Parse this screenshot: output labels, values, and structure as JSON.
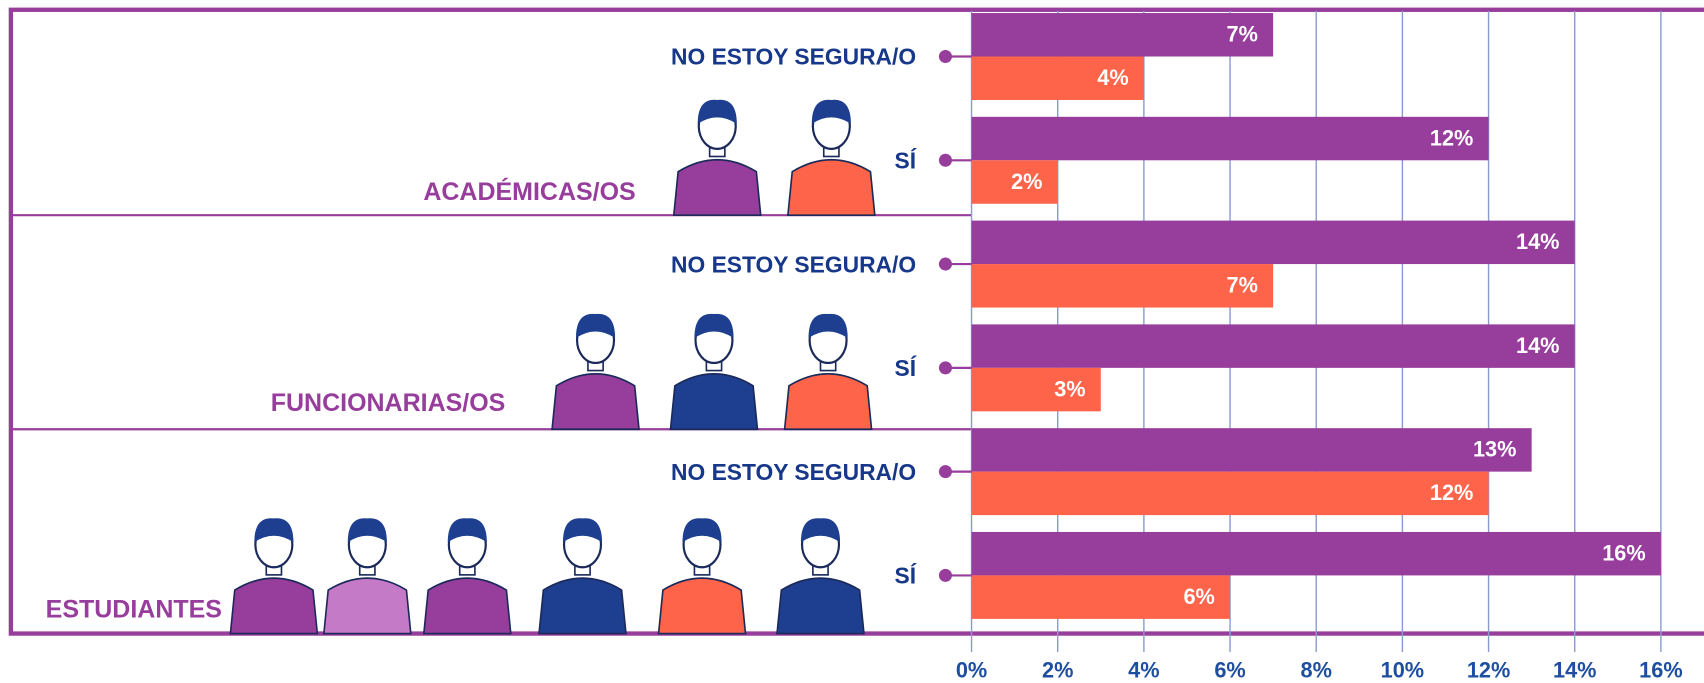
{
  "chart_data": {
    "type": "bar",
    "orientation": "horizontal",
    "groups": [
      "ACADÉMICAS/OS",
      "FUNCIONARIAS/OS",
      "ESTUDIANTES"
    ],
    "categories": [
      "NO ESTOY SEGURA/O",
      "SÍ",
      "NO ESTOY SEGURA/O",
      "SÍ",
      "NO ESTOY SEGURA/O",
      "SÍ"
    ],
    "series": [
      {
        "color": "#973d9c",
        "values": [
          7,
          12,
          14,
          14,
          13,
          16
        ],
        "value_labels": [
          "7%",
          "12%",
          "14%",
          "14%",
          "13%",
          "16%"
        ]
      },
      {
        "color": "#fe6449",
        "values": [
          4,
          2,
          7,
          3,
          12,
          6
        ],
        "value_labels": [
          "4%",
          "2%",
          "7%",
          "3%",
          "12%",
          "6%"
        ]
      }
    ],
    "xlim": [
      0,
      17
    ],
    "xticks": [
      {
        "value": 0,
        "label": "0%"
      },
      {
        "value": 2,
        "label": "2%"
      },
      {
        "value": 4,
        "label": "4%"
      },
      {
        "value": 6,
        "label": "6%"
      },
      {
        "value": 8,
        "label": "8%"
      },
      {
        "value": 10,
        "label": "10%"
      },
      {
        "value": 12,
        "label": "12%"
      },
      {
        "value": 14,
        "label": "14%"
      },
      {
        "value": 16,
        "label": "16%"
      }
    ],
    "grid": true
  }
}
